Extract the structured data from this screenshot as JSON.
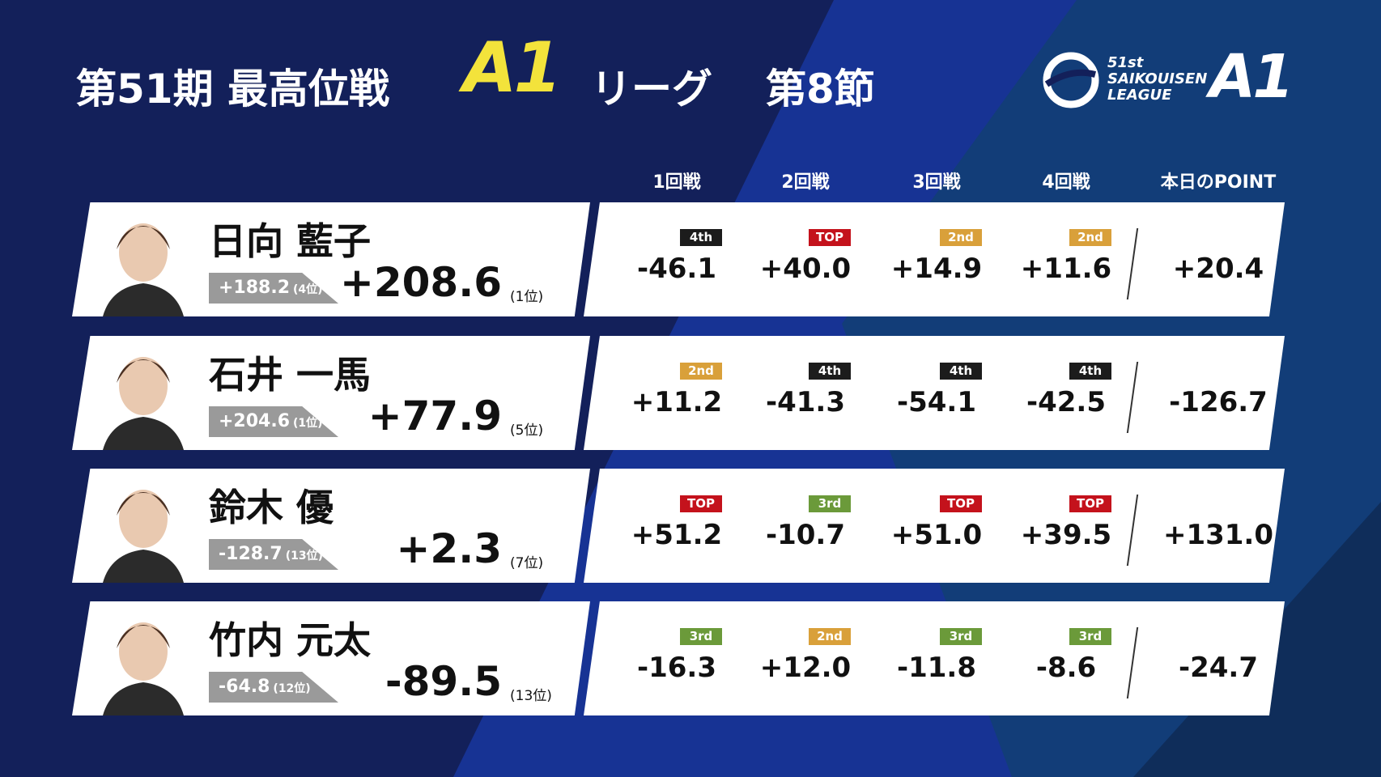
{
  "header": {
    "title_prefix": "第51期 最高位戦",
    "title_a1": "A1",
    "title_league": "リーグ",
    "title_round": "第8節"
  },
  "logo": {
    "edition": "51st",
    "line1": "SAIKOUISEN",
    "line2": "LEAGUE",
    "mark": "A1"
  },
  "columns": [
    "1回戦",
    "2回戦",
    "3回戦",
    "4回戦",
    "本日のPOINT"
  ],
  "players": [
    {
      "name": "日向 藍子",
      "prev_score": "+188.2",
      "prev_rank": "(4位)",
      "total": "+208.6",
      "rank": "(1位)",
      "games": [
        {
          "badge": "4th",
          "badge_color": "#1c1c1c",
          "score": "-46.1"
        },
        {
          "badge": "TOP",
          "badge_color": "#c4121c",
          "score": "+40.0"
        },
        {
          "badge": "2nd",
          "badge_color": "#d9a03a",
          "score": "+14.9"
        },
        {
          "badge": "2nd",
          "badge_color": "#d9a03a",
          "score": "+11.6"
        }
      ],
      "day_point": "+20.4"
    },
    {
      "name": "石井 一馬",
      "prev_score": "+204.6",
      "prev_rank": "(1位)",
      "total": "+77.9",
      "rank": "(5位)",
      "games": [
        {
          "badge": "2nd",
          "badge_color": "#d9a03a",
          "score": "+11.2"
        },
        {
          "badge": "4th",
          "badge_color": "#1c1c1c",
          "score": "-41.3"
        },
        {
          "badge": "4th",
          "badge_color": "#1c1c1c",
          "score": "-54.1"
        },
        {
          "badge": "4th",
          "badge_color": "#1c1c1c",
          "score": "-42.5"
        }
      ],
      "day_point": "-126.7"
    },
    {
      "name": "鈴木 優",
      "prev_score": "-128.7",
      "prev_rank": "(13位)",
      "total": "+2.3",
      "rank": "(7位)",
      "games": [
        {
          "badge": "TOP",
          "badge_color": "#c4121c",
          "score": "+51.2"
        },
        {
          "badge": "3rd",
          "badge_color": "#6b9a3a",
          "score": "-10.7"
        },
        {
          "badge": "TOP",
          "badge_color": "#c4121c",
          "score": "+51.0"
        },
        {
          "badge": "TOP",
          "badge_color": "#c4121c",
          "score": "+39.5"
        }
      ],
      "day_point": "+131.0"
    },
    {
      "name": "竹内 元太",
      "prev_score": "-64.8",
      "prev_rank": "(12位)",
      "total": "-89.5",
      "rank": "(13位)",
      "games": [
        {
          "badge": "3rd",
          "badge_color": "#6b9a3a",
          "score": "-16.3"
        },
        {
          "badge": "2nd",
          "badge_color": "#d9a03a",
          "score": "+12.0"
        },
        {
          "badge": "3rd",
          "badge_color": "#6b9a3a",
          "score": "-11.8"
        },
        {
          "badge": "3rd",
          "badge_color": "#6b9a3a",
          "score": "-8.6"
        }
      ],
      "day_point": "-24.7"
    }
  ]
}
